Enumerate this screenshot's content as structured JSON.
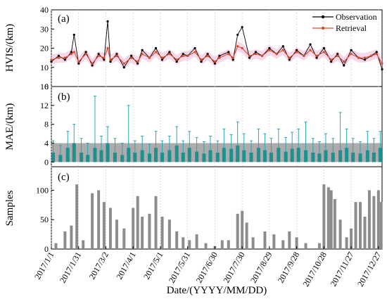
{
  "x_axis": {
    "ticks": [
      "2017/1/1",
      "2017/1/31",
      "2017/3/2",
      "2017/4/1",
      "2017/5/1",
      "2017/5/31",
      "2017/6/30",
      "2017/7/30",
      "2017/8/29",
      "2017/9/28",
      "2017/10/28",
      "2017/11/27",
      "2017/12/27"
    ],
    "tick_days": [
      0,
      30,
      60,
      90,
      120,
      150,
      180,
      210,
      240,
      270,
      300,
      330,
      360
    ],
    "label": "Date/(YYYY/MM/DD)",
    "range_days": [
      0,
      364
    ]
  },
  "colors": {
    "observation": "#000000",
    "retrieval": "#d94a2b",
    "retrieval_band": "#f4c7e2",
    "mae_bar": "#1f8f8f",
    "mae_whisker": "#2aa5b5",
    "mae_band": "#9e9e9e",
    "samples_bar": "#8c8c8c",
    "grid": "#c8c8c8"
  },
  "chart_data": [
    {
      "type": "line",
      "panel_label": "(a)",
      "ylabel": "HVIS/(km)",
      "ylim": [
        0,
        40
      ],
      "yticks": [
        0,
        10,
        20,
        30,
        40
      ],
      "grid": "vertical dotted",
      "legend_placement": "top-right",
      "x_units": "day of year 2017 (0 = 2017/1/1)",
      "series": [
        {
          "name": "Observation",
          "x": [
            0,
            8,
            15,
            22,
            25,
            30,
            38,
            45,
            52,
            58,
            62,
            65,
            72,
            80,
            88,
            95,
            100,
            108,
            115,
            122,
            130,
            138,
            145,
            150,
            158,
            165,
            172,
            180,
            185,
            195,
            200,
            205,
            210,
            218,
            225,
            232,
            240,
            248,
            255,
            262,
            270,
            278,
            285,
            292,
            300,
            308,
            315,
            322,
            330,
            338,
            345,
            352,
            358,
            364
          ],
          "y": [
            13,
            16,
            14,
            18,
            27,
            12,
            18,
            11,
            17,
            14,
            34,
            13,
            17,
            10,
            16,
            12,
            19,
            15,
            20,
            14,
            18,
            13,
            17,
            16,
            20,
            13,
            17,
            12,
            16,
            18,
            14,
            27,
            31,
            15,
            18,
            16,
            20,
            17,
            21,
            14,
            19,
            16,
            22,
            15,
            20,
            13,
            17,
            11,
            19,
            15,
            14,
            16,
            18,
            9
          ]
        },
        {
          "name": "Retrieval",
          "x": [
            0,
            8,
            15,
            22,
            25,
            30,
            38,
            45,
            52,
            58,
            62,
            65,
            72,
            80,
            88,
            95,
            100,
            108,
            115,
            122,
            130,
            138,
            145,
            150,
            158,
            165,
            172,
            180,
            185,
            195,
            200,
            205,
            210,
            218,
            225,
            232,
            240,
            248,
            255,
            262,
            270,
            278,
            285,
            292,
            300,
            308,
            315,
            322,
            330,
            338,
            345,
            352,
            358,
            364
          ],
          "y": [
            14,
            15,
            15,
            17,
            18,
            13,
            17,
            12,
            16,
            15,
            20,
            14,
            16,
            12,
            15,
            13,
            17,
            15,
            18,
            15,
            17,
            14,
            16,
            16,
            18,
            14,
            16,
            13,
            15,
            17,
            15,
            21,
            20,
            16,
            17,
            16,
            19,
            17,
            19,
            15,
            18,
            16,
            19,
            16,
            18,
            14,
            16,
            13,
            17,
            15,
            15,
            16,
            17,
            12
          ]
        }
      ]
    },
    {
      "type": "bar",
      "panel_label": "(b)",
      "ylabel": "MAE/(km)",
      "ylim": [
        -1,
        16
      ],
      "yticks": [
        0,
        4,
        8,
        12,
        16
      ],
      "shaded_band": [
        0,
        4
      ],
      "x_units": "day of year 2017 (0 = 2017/1/1)",
      "x": [
        2,
        10,
        18,
        25,
        33,
        40,
        48,
        55,
        62,
        70,
        78,
        85,
        92,
        100,
        108,
        115,
        122,
        130,
        138,
        145,
        152,
        160,
        168,
        175,
        183,
        190,
        198,
        205,
        212,
        220,
        228,
        235,
        242,
        250,
        258,
        265,
        272,
        280,
        288,
        295,
        302,
        310,
        318,
        325,
        332,
        340,
        348,
        355,
        362
      ],
      "values": [
        2,
        1.5,
        3,
        4,
        2,
        1.5,
        3,
        2.5,
        4,
        2,
        1.5,
        3,
        2,
        2.5,
        1.8,
        3,
        2,
        2.5,
        3.5,
        2,
        3,
        2.2,
        1.8,
        2.5,
        2,
        3,
        2.8,
        3.5,
        2.5,
        2,
        3,
        2.5,
        2,
        3,
        2.2,
        2.8,
        3,
        2.5,
        2,
        1.8,
        2.5,
        2,
        2.5,
        3,
        2,
        1.8,
        2.5,
        2,
        3
      ],
      "error": [
        2.5,
        2,
        3.5,
        4,
        3,
        2.5,
        11,
        3,
        3.5,
        3,
        2.5,
        9,
        2.5,
        3,
        2,
        3.5,
        2.5,
        3,
        4,
        2.5,
        3.5,
        3,
        2.5,
        3,
        2.5,
        4,
        3,
        5,
        3.5,
        2.5,
        4,
        3.5,
        3,
        4,
        3,
        3.5,
        4,
        6,
        3,
        2.5,
        3.5,
        3,
        8,
        4,
        3,
        2.5,
        4,
        3,
        3.5
      ]
    },
    {
      "type": "bar",
      "panel_label": "(c)",
      "ylabel": "Samples",
      "ylim": [
        0,
        140
      ],
      "yticks": [
        0,
        50,
        100
      ],
      "x_units": "day of year 2017 (0 = 2017/1/1)",
      "x": [
        5,
        15,
        22,
        28,
        35,
        45,
        52,
        58,
        65,
        72,
        80,
        90,
        95,
        100,
        108,
        115,
        122,
        130,
        138,
        145,
        152,
        160,
        170,
        180,
        188,
        195,
        205,
        210,
        215,
        222,
        235,
        245,
        255,
        262,
        270,
        280,
        295,
        300,
        305,
        308,
        312,
        318,
        325,
        330,
        335,
        340,
        345,
        350,
        355,
        360,
        363
      ],
      "values": [
        10,
        30,
        40,
        110,
        15,
        95,
        100,
        80,
        70,
        50,
        35,
        70,
        90,
        55,
        60,
        90,
        55,
        50,
        30,
        20,
        15,
        25,
        10,
        5,
        15,
        15,
        60,
        65,
        45,
        20,
        30,
        25,
        15,
        30,
        20,
        10,
        10,
        110,
        105,
        100,
        85,
        50,
        20,
        35,
        80,
        80,
        55,
        100,
        90,
        100,
        80
      ]
    }
  ]
}
